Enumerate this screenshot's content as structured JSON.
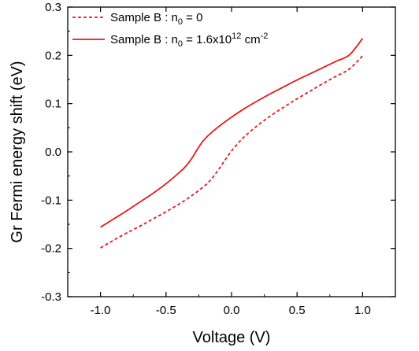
{
  "chart_data": {
    "type": "line",
    "xlabel": "Voltage (V)",
    "ylabel": "Gr Fermi energy shift (eV)",
    "xlim": [
      -1.25,
      1.25
    ],
    "ylim": [
      -0.3,
      0.3
    ],
    "x_ticks": [
      "-1.0",
      "-0.5",
      "0.0",
      "0.5",
      "1.0"
    ],
    "y_ticks": [
      "-0.3",
      "-0.2",
      "-0.1",
      "0.0",
      "0.1",
      "0.2",
      "0.3"
    ],
    "grid": false,
    "legend_position": "top-left",
    "series": [
      {
        "name": "Sample B : n0 = 0",
        "legend": {
          "main": "Sample B : n",
          "sub": "0",
          "rest": " = 0"
        },
        "style": "dashed",
        "color": "#e8191c",
        "x": [
          -1.0,
          -0.9,
          -0.8,
          -0.7,
          -0.6,
          -0.5,
          -0.4,
          -0.3,
          -0.2,
          -0.15,
          -0.1,
          -0.05,
          0.0,
          0.05,
          0.1,
          0.2,
          0.3,
          0.4,
          0.5,
          0.6,
          0.7,
          0.8,
          0.9,
          1.0
        ],
        "y": [
          -0.199,
          -0.183,
          -0.168,
          -0.154,
          -0.139,
          -0.124,
          -0.108,
          -0.09,
          -0.069,
          -0.055,
          -0.037,
          -0.017,
          0.002,
          0.018,
          0.032,
          0.055,
          0.075,
          0.093,
          0.11,
          0.126,
          0.142,
          0.157,
          0.172,
          0.199
        ]
      },
      {
        "name": "Sample B : n0 = 1.6x10^12 cm^-2",
        "legend": {
          "main": "Sample B : n",
          "sub": "0",
          "rest": " = 1.6x10",
          "sup1": "12",
          "rest2": " cm",
          "sup2": "-2"
        },
        "style": "solid",
        "color": "#e8191c",
        "x": [
          -1.0,
          -0.9,
          -0.8,
          -0.7,
          -0.6,
          -0.5,
          -0.4,
          -0.35,
          -0.3,
          -0.25,
          -0.2,
          -0.1,
          0.0,
          0.1,
          0.2,
          0.3,
          0.4,
          0.5,
          0.6,
          0.7,
          0.8,
          0.9,
          1.0
        ],
        "y": [
          -0.156,
          -0.139,
          -0.122,
          -0.104,
          -0.086,
          -0.066,
          -0.043,
          -0.03,
          -0.012,
          0.01,
          0.028,
          0.052,
          0.072,
          0.09,
          0.106,
          0.121,
          0.135,
          0.149,
          0.162,
          0.175,
          0.188,
          0.201,
          0.235
        ]
      }
    ]
  }
}
